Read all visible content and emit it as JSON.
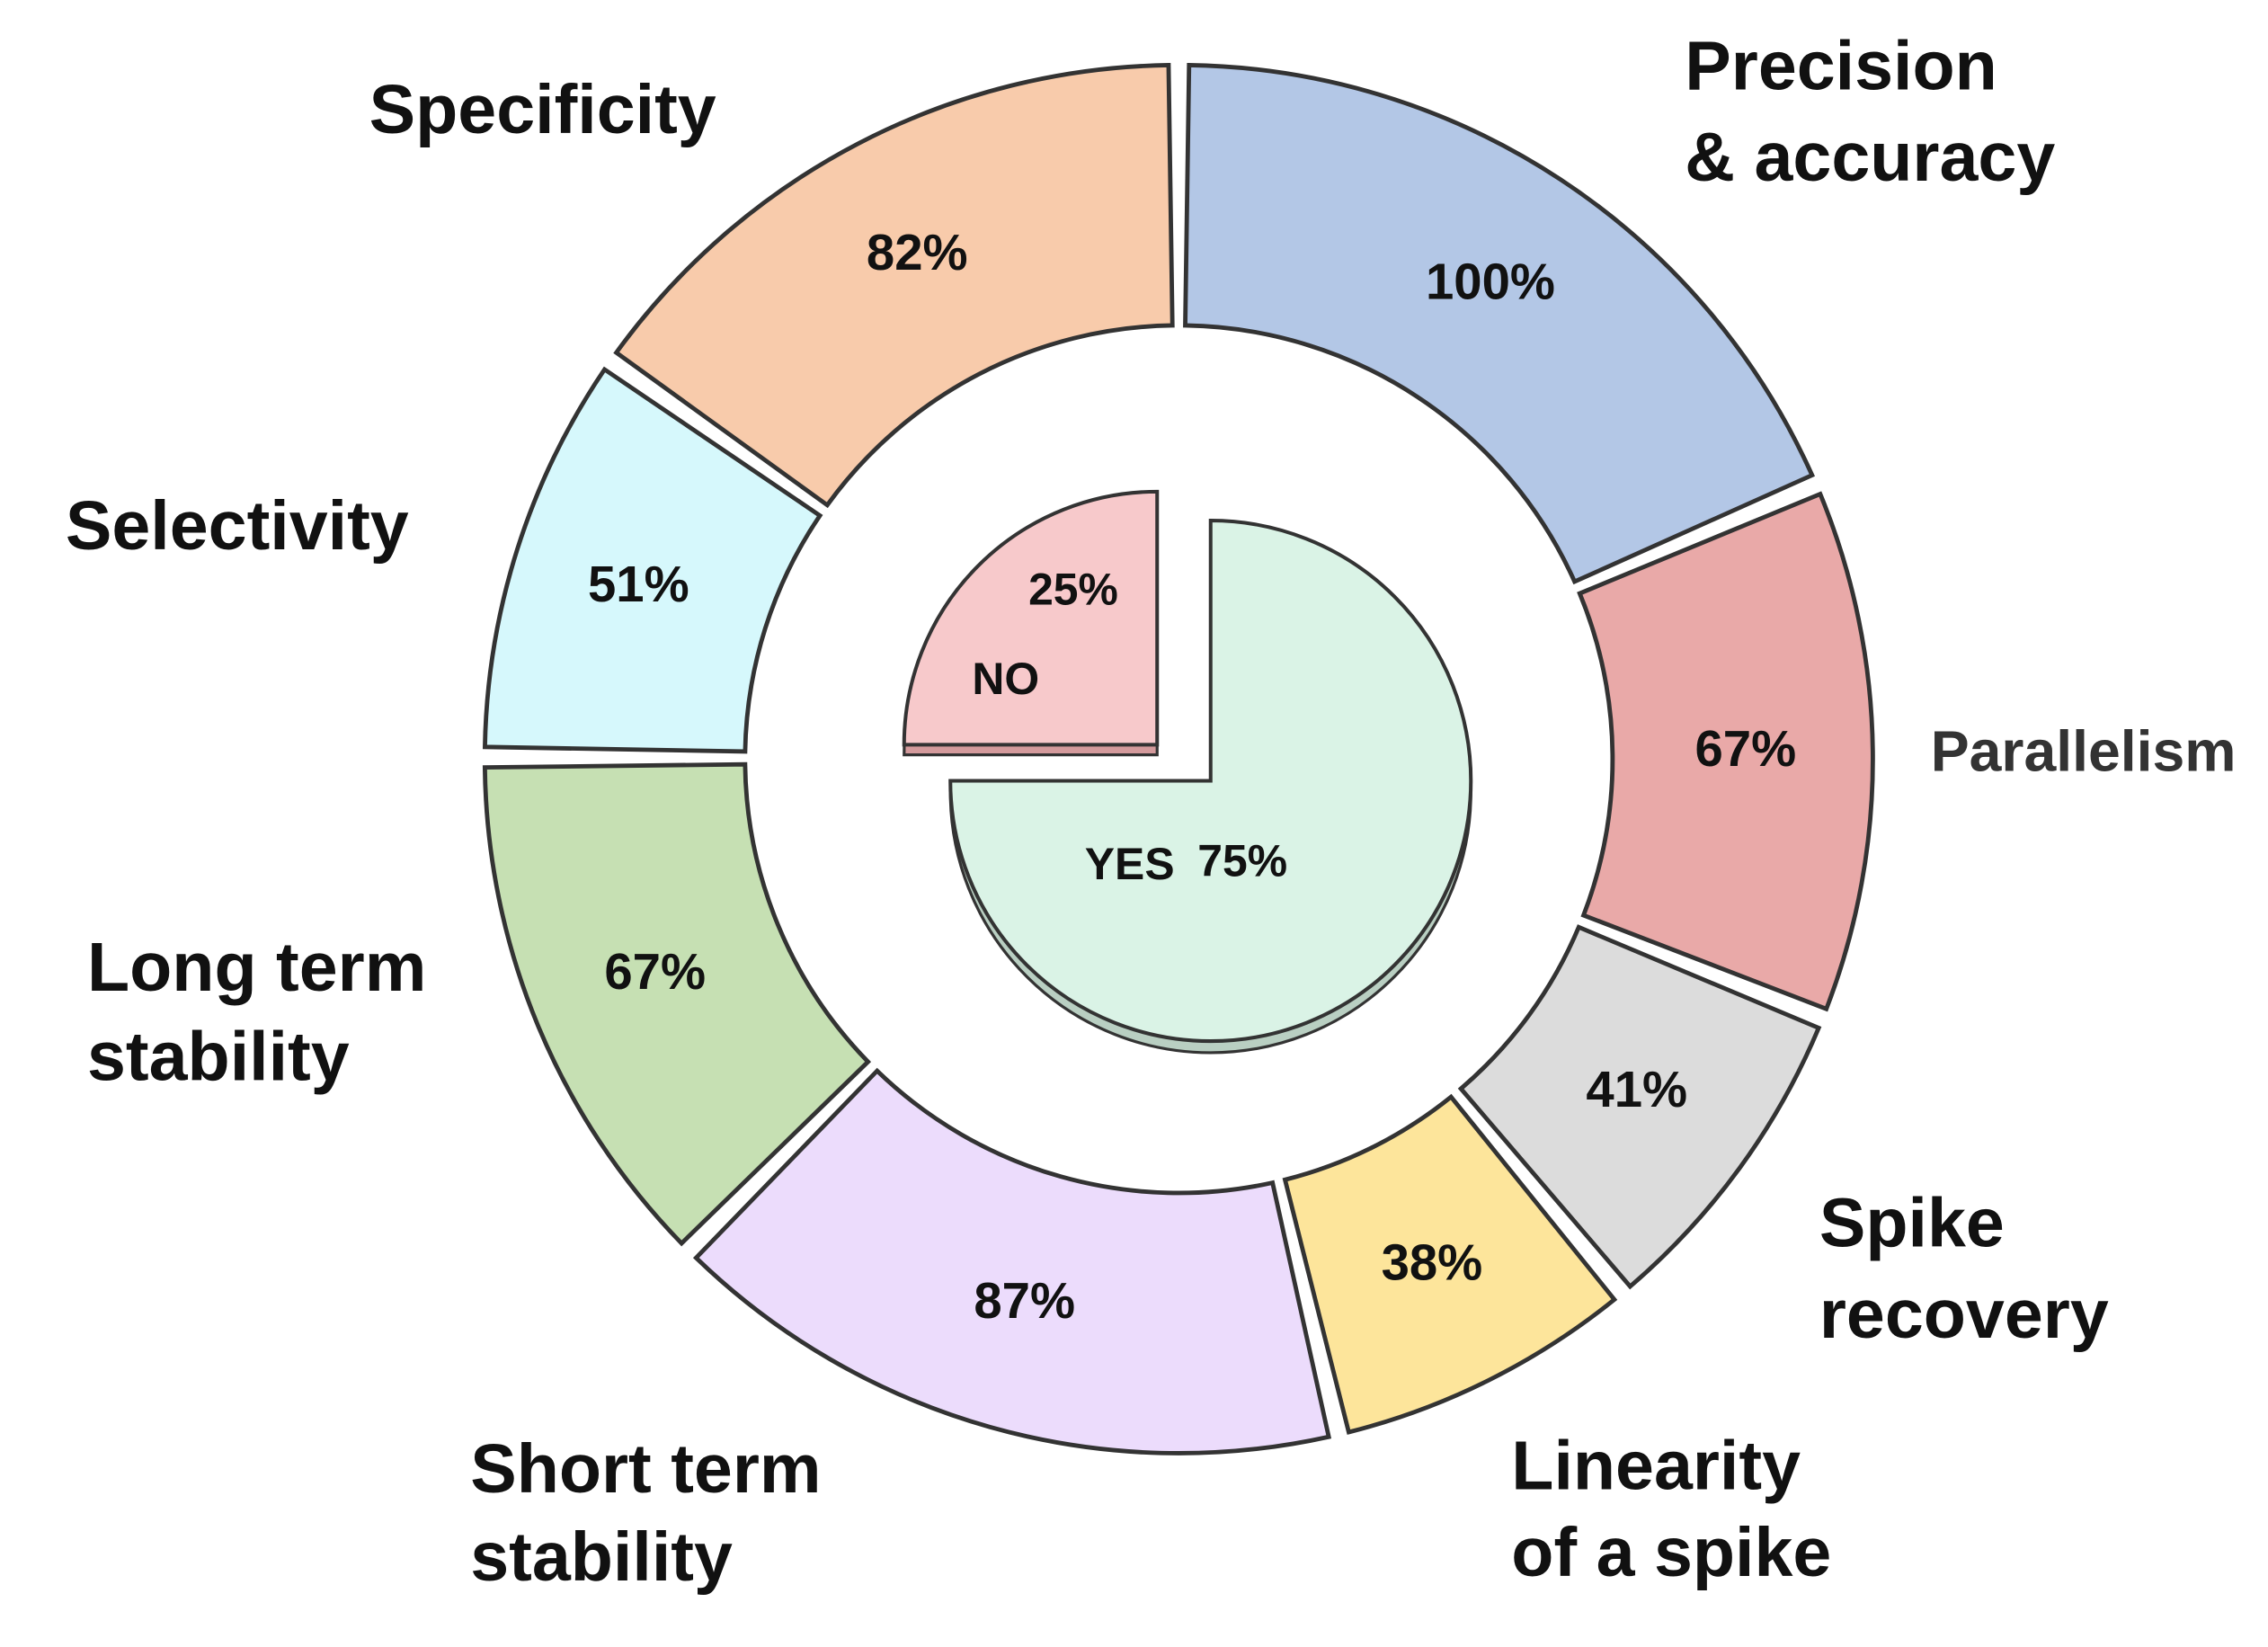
{
  "chart_data": {
    "type": "pie",
    "subtype": "donut-with-inner-pie",
    "outer_ring": {
      "categories": [
        {
          "label": [
            "Precision",
            "& accuracy"
          ],
          "value": 100,
          "value_label": "100%",
          "color": "#b3c7e6"
        },
        {
          "label": [
            "Parallelism"
          ],
          "value": 67,
          "value_label": "67%",
          "color": "#e9a9a8"
        },
        {
          "label": [
            "Spike",
            "recovery"
          ],
          "value": 41,
          "value_label": "41%",
          "color": "#dcdcdc"
        },
        {
          "label": [
            "Linearity",
            "of a spike"
          ],
          "value": 38,
          "value_label": "38%",
          "color": "#fde59b"
        },
        {
          "label": [
            "Short term",
            "stability"
          ],
          "value": 87,
          "value_label": "87%",
          "color": "#ecdcfc"
        },
        {
          "label": [
            "Long term",
            "stability"
          ],
          "value": 67,
          "value_label": "67%",
          "color": "#c6e0b3"
        },
        {
          "label": [
            "Selectivity"
          ],
          "value": 51,
          "value_label": "51%",
          "color": "#d6f8fc"
        },
        {
          "label": [
            "Specificity"
          ],
          "value": 82,
          "value_label": "82%",
          "color": "#f8cbab"
        }
      ]
    },
    "inner_pie": {
      "slices": [
        {
          "label": "YES",
          "value": 75,
          "value_label": "75%",
          "color": "#daf3e6"
        },
        {
          "label": "NO",
          "value": 25,
          "value_label": "25%",
          "color": "#f7c9cb"
        }
      ]
    },
    "stroke_color": "#333333"
  }
}
